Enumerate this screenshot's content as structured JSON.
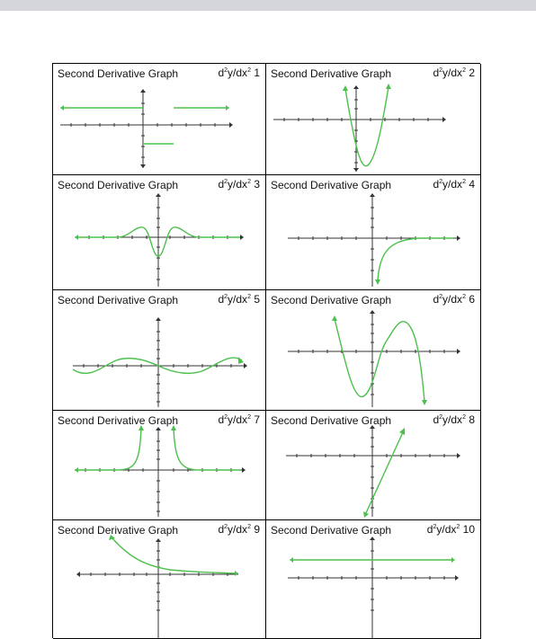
{
  "colors": {
    "curve": "#4cc04c",
    "axis": "#333333",
    "grid_border": "#000000",
    "topbar": "#d4d6db"
  },
  "cells": [
    {
      "title": "Second Derivative Graph",
      "label_prefix": "d",
      "label_sup": "2",
      "label_suffix": "y/dx",
      "label_sup2": "2",
      "label_num": "1"
    },
    {
      "title": "Second Derivative Graph",
      "label_prefix": "d",
      "label_sup": "2",
      "label_suffix": "y/dx",
      "label_sup2": "2",
      "label_num": "2"
    },
    {
      "title": "Second Derivative Graph",
      "label_prefix": "d",
      "label_sup": "2",
      "label_suffix": "y/dx",
      "label_sup2": "2",
      "label_num": "3"
    },
    {
      "title": "Second Derivative Graph",
      "label_prefix": "d",
      "label_sup": "2",
      "label_suffix": "y/dx",
      "label_sup2": "2",
      "label_num": "4"
    },
    {
      "title": "Second Derivative Graph",
      "label_prefix": "d",
      "label_sup": "2",
      "label_suffix": "y/dx",
      "label_sup2": "2",
      "label_num": "5"
    },
    {
      "title": "Second Derivative Graph",
      "label_prefix": "d",
      "label_sup": "2",
      "label_suffix": "y/dx",
      "label_sup2": "2",
      "label_num": "6"
    },
    {
      "title": "Second Derivative Graph",
      "label_prefix": "d",
      "label_sup": "2",
      "label_suffix": "y/dx",
      "label_sup2": "2",
      "label_num": "7"
    },
    {
      "title": "Second Derivative Graph",
      "label_prefix": "d",
      "label_sup": "2",
      "label_suffix": "y/dx",
      "label_sup2": "2",
      "label_num": "8"
    },
    {
      "title": "Second Derivative Graph",
      "label_prefix": "d",
      "label_sup": "2",
      "label_suffix": "y/dx",
      "label_sup2": "2",
      "label_num": "9"
    },
    {
      "title": "Second Derivative Graph",
      "label_prefix": "d",
      "label_sup": "2",
      "label_suffix": "y/dx",
      "label_sup2": "2",
      "label_num": "10"
    }
  ]
}
